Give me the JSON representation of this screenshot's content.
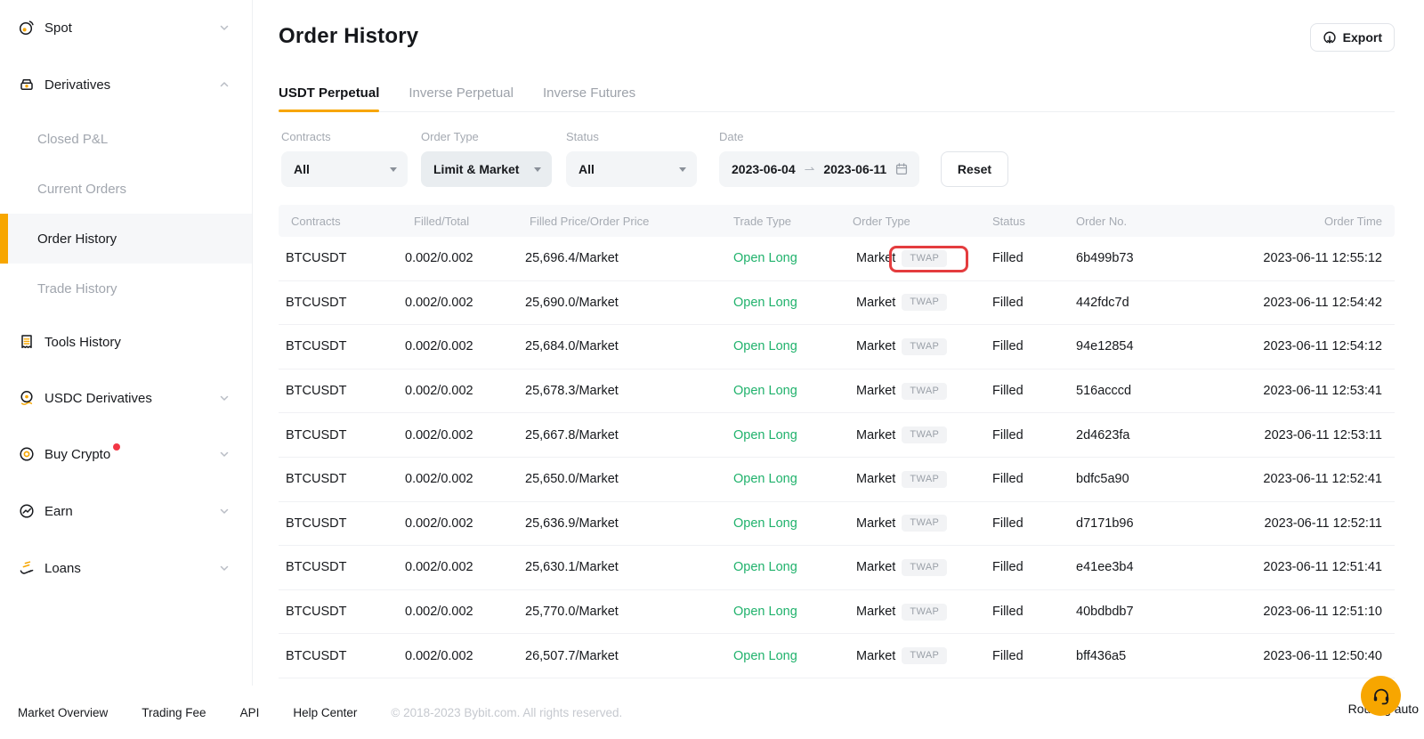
{
  "sidebar": {
    "items": [
      {
        "label": "Spot"
      },
      {
        "label": "Derivatives"
      },
      {
        "label": "Closed P&L"
      },
      {
        "label": "Current Orders"
      },
      {
        "label": "Order History"
      },
      {
        "label": "Trade History"
      },
      {
        "label": "Tools History"
      },
      {
        "label": "USDC Derivatives"
      },
      {
        "label": "Buy Crypto"
      },
      {
        "label": "Earn"
      },
      {
        "label": "Loans"
      }
    ]
  },
  "header": {
    "title": "Order History",
    "export_label": "Export"
  },
  "tabs": [
    {
      "label": "USDT Perpetual",
      "active": true
    },
    {
      "label": "Inverse Perpetual",
      "active": false
    },
    {
      "label": "Inverse Futures",
      "active": false
    }
  ],
  "filters": {
    "contracts": {
      "label": "Contracts",
      "value": "All"
    },
    "order_type": {
      "label": "Order Type",
      "value": "Limit & Market"
    },
    "status": {
      "label": "Status",
      "value": "All"
    },
    "date": {
      "label": "Date",
      "from": "2023-06-04",
      "to": "2023-06-11"
    },
    "reset_label": "Reset"
  },
  "table": {
    "columns": [
      "Contracts",
      "Filled/Total",
      "Filled Price/Order Price",
      "Trade Type",
      "Order Type",
      "Status",
      "Order No.",
      "Order Time"
    ],
    "rows": [
      {
        "contracts": "BTCUSDT",
        "filled_total": "0.002/0.002",
        "price": "25,696.4/Market",
        "trade_type": "Open Long",
        "order_type": "Market",
        "tag": "TWAP",
        "status": "Filled",
        "order_no": "6b499b73",
        "order_time": "2023-06-11 12:55:12",
        "highlighted": true
      },
      {
        "contracts": "BTCUSDT",
        "filled_total": "0.002/0.002",
        "price": "25,690.0/Market",
        "trade_type": "Open Long",
        "order_type": "Market",
        "tag": "TWAP",
        "status": "Filled",
        "order_no": "442fdc7d",
        "order_time": "2023-06-11 12:54:42",
        "highlighted": false
      },
      {
        "contracts": "BTCUSDT",
        "filled_total": "0.002/0.002",
        "price": "25,684.0/Market",
        "trade_type": "Open Long",
        "order_type": "Market",
        "tag": "TWAP",
        "status": "Filled",
        "order_no": "94e12854",
        "order_time": "2023-06-11 12:54:12",
        "highlighted": false
      },
      {
        "contracts": "BTCUSDT",
        "filled_total": "0.002/0.002",
        "price": "25,678.3/Market",
        "trade_type": "Open Long",
        "order_type": "Market",
        "tag": "TWAP",
        "status": "Filled",
        "order_no": "516acccd",
        "order_time": "2023-06-11 12:53:41",
        "highlighted": false
      },
      {
        "contracts": "BTCUSDT",
        "filled_total": "0.002/0.002",
        "price": "25,667.8/Market",
        "trade_type": "Open Long",
        "order_type": "Market",
        "tag": "TWAP",
        "status": "Filled",
        "order_no": "2d4623fa",
        "order_time": "2023-06-11 12:53:11",
        "highlighted": false
      },
      {
        "contracts": "BTCUSDT",
        "filled_total": "0.002/0.002",
        "price": "25,650.0/Market",
        "trade_type": "Open Long",
        "order_type": "Market",
        "tag": "TWAP",
        "status": "Filled",
        "order_no": "bdfc5a90",
        "order_time": "2023-06-11 12:52:41",
        "highlighted": false
      },
      {
        "contracts": "BTCUSDT",
        "filled_total": "0.002/0.002",
        "price": "25,636.9/Market",
        "trade_type": "Open Long",
        "order_type": "Market",
        "tag": "TWAP",
        "status": "Filled",
        "order_no": "d7171b96",
        "order_time": "2023-06-11 12:52:11",
        "highlighted": false
      },
      {
        "contracts": "BTCUSDT",
        "filled_total": "0.002/0.002",
        "price": "25,630.1/Market",
        "trade_type": "Open Long",
        "order_type": "Market",
        "tag": "TWAP",
        "status": "Filled",
        "order_no": "e41ee3b4",
        "order_time": "2023-06-11 12:51:41",
        "highlighted": false
      },
      {
        "contracts": "BTCUSDT",
        "filled_total": "0.002/0.002",
        "price": "25,770.0/Market",
        "trade_type": "Open Long",
        "order_type": "Market",
        "tag": "TWAP",
        "status": "Filled",
        "order_no": "40bdbdb7",
        "order_time": "2023-06-11 12:51:10",
        "highlighted": false
      },
      {
        "contracts": "BTCUSDT",
        "filled_total": "0.002/0.002",
        "price": "26,507.7/Market",
        "trade_type": "Open Long",
        "order_type": "Market",
        "tag": "TWAP",
        "status": "Filled",
        "order_no": "bff436a5",
        "order_time": "2023-06-11 12:50:40",
        "highlighted": false
      }
    ]
  },
  "footer": {
    "links": [
      "Market Overview",
      "Trading Fee",
      "API",
      "Help Center"
    ],
    "copyright": "© 2018-2023 Bybit.com. All rights reserved."
  },
  "support": {
    "routing_text": "Routing auto"
  },
  "colors": {
    "accent": "#f7a600",
    "green": "#20b26c",
    "annotation_red": "#e43c3e",
    "notification_red": "#f23645"
  }
}
